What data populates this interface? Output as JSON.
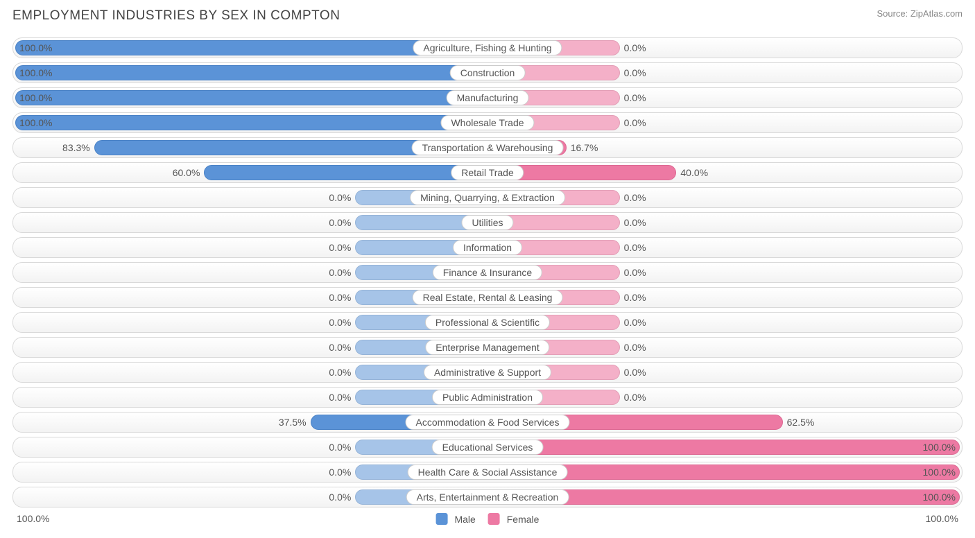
{
  "title": "EMPLOYMENT INDUSTRIES BY SEX IN COMPTON",
  "source": "Source: ZipAtlas.com",
  "axis_label": "100.0%",
  "legend": {
    "male": "Male",
    "female": "Female"
  },
  "colors": {
    "male_full": "#5b93d7",
    "male_light": "#a6c4e8",
    "female_full": "#ed79a3",
    "female_light": "#f4b0c8",
    "row_border": "#d9d9d9",
    "text": "#555555",
    "title_text": "#444444",
    "source_text": "#888888",
    "background": "#ffffff"
  },
  "chart": {
    "type": "diverging-bar",
    "default_stub_pct": 28,
    "rows": [
      {
        "label": "Agriculture, Fishing & Hunting",
        "male": 100.0,
        "female": 0.0,
        "male_text": "100.0%",
        "female_text": "0.0%"
      },
      {
        "label": "Construction",
        "male": 100.0,
        "female": 0.0,
        "male_text": "100.0%",
        "female_text": "0.0%"
      },
      {
        "label": "Manufacturing",
        "male": 100.0,
        "female": 0.0,
        "male_text": "100.0%",
        "female_text": "0.0%"
      },
      {
        "label": "Wholesale Trade",
        "male": 100.0,
        "female": 0.0,
        "male_text": "100.0%",
        "female_text": "0.0%"
      },
      {
        "label": "Transportation & Warehousing",
        "male": 83.3,
        "female": 16.7,
        "male_text": "83.3%",
        "female_text": "16.7%"
      },
      {
        "label": "Retail Trade",
        "male": 60.0,
        "female": 40.0,
        "male_text": "60.0%",
        "female_text": "40.0%"
      },
      {
        "label": "Mining, Quarrying, & Extraction",
        "male": 0.0,
        "female": 0.0,
        "male_text": "0.0%",
        "female_text": "0.0%"
      },
      {
        "label": "Utilities",
        "male": 0.0,
        "female": 0.0,
        "male_text": "0.0%",
        "female_text": "0.0%"
      },
      {
        "label": "Information",
        "male": 0.0,
        "female": 0.0,
        "male_text": "0.0%",
        "female_text": "0.0%"
      },
      {
        "label": "Finance & Insurance",
        "male": 0.0,
        "female": 0.0,
        "male_text": "0.0%",
        "female_text": "0.0%"
      },
      {
        "label": "Real Estate, Rental & Leasing",
        "male": 0.0,
        "female": 0.0,
        "male_text": "0.0%",
        "female_text": "0.0%"
      },
      {
        "label": "Professional & Scientific",
        "male": 0.0,
        "female": 0.0,
        "male_text": "0.0%",
        "female_text": "0.0%"
      },
      {
        "label": "Enterprise Management",
        "male": 0.0,
        "female": 0.0,
        "male_text": "0.0%",
        "female_text": "0.0%"
      },
      {
        "label": "Administrative & Support",
        "male": 0.0,
        "female": 0.0,
        "male_text": "0.0%",
        "female_text": "0.0%"
      },
      {
        "label": "Public Administration",
        "male": 0.0,
        "female": 0.0,
        "male_text": "0.0%",
        "female_text": "0.0%"
      },
      {
        "label": "Accommodation & Food Services",
        "male": 37.5,
        "female": 62.5,
        "male_text": "37.5%",
        "female_text": "62.5%"
      },
      {
        "label": "Educational Services",
        "male": 0.0,
        "female": 100.0,
        "male_text": "0.0%",
        "female_text": "100.0%"
      },
      {
        "label": "Health Care & Social Assistance",
        "male": 0.0,
        "female": 100.0,
        "male_text": "0.0%",
        "female_text": "100.0%"
      },
      {
        "label": "Arts, Entertainment & Recreation",
        "male": 0.0,
        "female": 100.0,
        "male_text": "0.0%",
        "female_text": "100.0%"
      }
    ]
  }
}
